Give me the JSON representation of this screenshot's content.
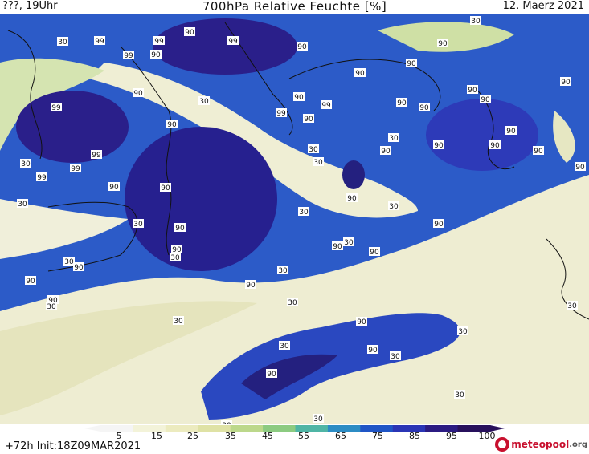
{
  "header": {
    "left": "???, 19Uhr",
    "title": "700hPa Relative Feuchte [%]",
    "date": "12. Maerz 2021"
  },
  "footer": {
    "run_info": "+72h  Init:18Z09MAR2021",
    "logo_text": "meteopool",
    "logo_suffix": ".org"
  },
  "legend": {
    "ticks": [
      "5",
      "15",
      "25",
      "35",
      "45",
      "55",
      "65",
      "75",
      "85",
      "95",
      "100"
    ],
    "colors": [
      "#f5f5f5",
      "#f3f3d9",
      "#ecebbf",
      "#dfe2a5",
      "#bcd88b",
      "#8ccb81",
      "#4fb5a5",
      "#2c8cc4",
      "#1f55c6",
      "#2a35b5",
      "#2b1b82",
      "#27105c"
    ]
  },
  "map_labels": {
    "contour_90": "90",
    "contour_99": "99",
    "contour_30": "30"
  },
  "colors": {
    "dry": "#f1f0d6",
    "mid": "#4fb5a5",
    "moist": "#1f55c6",
    "very_moist": "#2a229e",
    "coast": "#111111"
  }
}
